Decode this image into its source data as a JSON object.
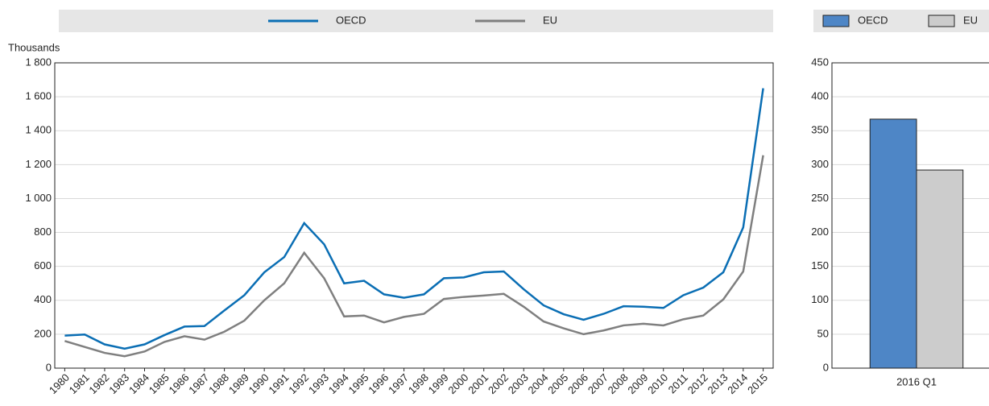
{
  "chart_data": [
    {
      "type": "line",
      "ylabel": "Thousands",
      "categories": [
        "1980",
        "1981",
        "1982",
        "1983",
        "1984",
        "1985",
        "1986",
        "1987",
        "1988",
        "1989",
        "1990",
        "1991",
        "1992",
        "1993",
        "1994",
        "1995",
        "1996",
        "1997",
        "1998",
        "1999",
        "2000",
        "2001",
        "2002",
        "2003",
        "2004",
        "2005",
        "2006",
        "2007",
        "2008",
        "2009",
        "2010",
        "2011",
        "2012",
        "2013",
        "2014",
        "2015"
      ],
      "series": [
        {
          "name": "OECD",
          "color": "#0a6eb4",
          "values": [
            192,
            198,
            140,
            115,
            140,
            195,
            245,
            248,
            340,
            430,
            565,
            655,
            855,
            730,
            500,
            515,
            435,
            415,
            435,
            530,
            535,
            565,
            570,
            465,
            370,
            318,
            285,
            320,
            365,
            362,
            355,
            430,
            475,
            565,
            830,
            1650
          ]
        },
        {
          "name": "EU",
          "color": "#7f7f7f",
          "values": [
            160,
            125,
            90,
            70,
            98,
            155,
            188,
            168,
            215,
            280,
            400,
            500,
            680,
            530,
            305,
            310,
            270,
            302,
            320,
            408,
            420,
            428,
            438,
            362,
            275,
            235,
            200,
            222,
            252,
            262,
            252,
            288,
            310,
            405,
            570,
            1255
          ]
        }
      ],
      "ylim": [
        0,
        1800
      ],
      "yticks": [
        0,
        200,
        400,
        600,
        800,
        {
          "value": 1000,
          "label": "1 000"
        },
        {
          "value": 1200,
          "label": "1 200"
        },
        {
          "value": 1400,
          "label": "1 400"
        },
        {
          "value": 1600,
          "label": "1 600"
        },
        {
          "value": 1800,
          "label": "1 800"
        }
      ],
      "grid": true,
      "legend": "top"
    },
    {
      "type": "bar",
      "categories": [
        "2016 Q1"
      ],
      "series": [
        {
          "name": "OECD",
          "color": "#4e86c6",
          "values": [
            367
          ]
        },
        {
          "name": "EU",
          "color": "#cccccc",
          "values": [
            292
          ]
        }
      ],
      "ylim": [
        0,
        450
      ],
      "yticks": [
        0,
        50,
        100,
        150,
        200,
        250,
        300,
        350,
        400,
        450
      ],
      "grid": true,
      "legend": "top"
    }
  ]
}
